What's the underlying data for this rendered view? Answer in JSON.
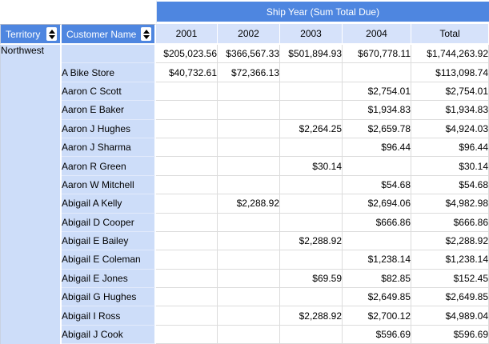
{
  "pivot": {
    "column_group_title": "Ship Year (Sum Total Due)",
    "territory_header": "Territory",
    "customer_header": "Customer Name",
    "year_columns": [
      "2001",
      "2002",
      "2003",
      "2004",
      "Total"
    ],
    "territory": "Northwest",
    "rows": [
      {
        "customer": "",
        "values": [
          "$205,023.56",
          "$366,567.33",
          "$501,894.93",
          "$670,778.11",
          "$1,744,263.92"
        ]
      },
      {
        "customer": "A Bike Store",
        "values": [
          "$40,732.61",
          "$72,366.13",
          "",
          "",
          "$113,098.74"
        ]
      },
      {
        "customer": "Aaron C Scott",
        "values": [
          "",
          "",
          "",
          "$2,754.01",
          "$2,754.01"
        ]
      },
      {
        "customer": "Aaron E Baker",
        "values": [
          "",
          "",
          "",
          "$1,934.83",
          "$1,934.83"
        ]
      },
      {
        "customer": "Aaron J Hughes",
        "values": [
          "",
          "",
          "$2,264.25",
          "$2,659.78",
          "$4,924.03"
        ]
      },
      {
        "customer": "Aaron J Sharma",
        "values": [
          "",
          "",
          "",
          "$96.44",
          "$96.44"
        ]
      },
      {
        "customer": "Aaron R Green",
        "values": [
          "",
          "",
          "$30.14",
          "",
          "$30.14"
        ]
      },
      {
        "customer": "Aaron W Mitchell",
        "values": [
          "",
          "",
          "",
          "$54.68",
          "$54.68"
        ]
      },
      {
        "customer": "Abigail A Kelly",
        "values": [
          "",
          "$2,288.92",
          "",
          "$2,694.06",
          "$4,982.98"
        ]
      },
      {
        "customer": "Abigail D Cooper",
        "values": [
          "",
          "",
          "",
          "$666.86",
          "$666.86"
        ]
      },
      {
        "customer": "Abigail E Bailey",
        "values": [
          "",
          "",
          "$2,288.92",
          "",
          "$2,288.92"
        ]
      },
      {
        "customer": "Abigail E Coleman",
        "values": [
          "",
          "",
          "",
          "$1,238.14",
          "$1,238.14"
        ]
      },
      {
        "customer": "Abigail E Jones",
        "values": [
          "",
          "",
          "$69.59",
          "$82.85",
          "$152.45"
        ]
      },
      {
        "customer": "Abigail G Hughes",
        "values": [
          "",
          "",
          "",
          "$2,649.85",
          "$2,649.85"
        ]
      },
      {
        "customer": "Abigail I Ross",
        "values": [
          "",
          "",
          "$2,288.92",
          "$2,700.12",
          "$4,989.04"
        ]
      },
      {
        "customer": "Abigail J Cook",
        "values": [
          "",
          "",
          "",
          "$596.69",
          "$596.69"
        ]
      }
    ],
    "icons": {
      "sort_toggle": "up-down-arrows"
    },
    "colors": {
      "header_blue": "#4e86e0",
      "row_header_light_blue": "#cdddf9",
      "year_header_light_blue": "#d6e2fa",
      "gridline_gray": "#dcdcdc",
      "header_text": "#ffffff",
      "body_text": "#000000"
    }
  }
}
